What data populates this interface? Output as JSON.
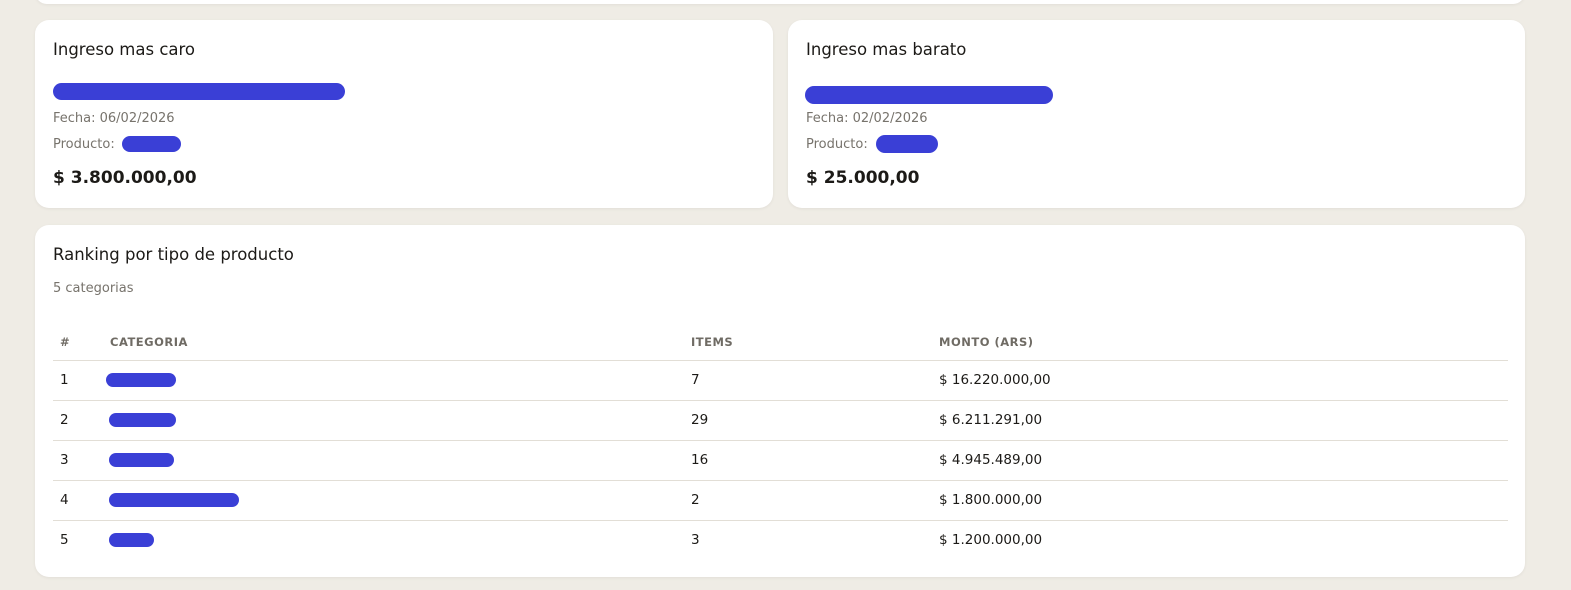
{
  "expensive": {
    "title": "Ingreso mas caro",
    "date": "Fecha: 06/02/2026",
    "product_label": "Producto:",
    "amount": "$ 3.800.000,00"
  },
  "cheapest": {
    "title": "Ingreso mas barato",
    "date": "Fecha: 02/02/2026",
    "product_label": "Producto:",
    "amount": "$ 25.000,00"
  },
  "ranking": {
    "title": "Ranking por tipo de producto",
    "subtitle": "5 categorias",
    "columns": [
      "#",
      "CATEGORIA",
      "ITEMS",
      "MONTO (ARS)"
    ],
    "rows": [
      {
        "rank": "1",
        "items": "7",
        "amount": "$ 16.220.000,00"
      },
      {
        "rank": "2",
        "items": "29",
        "amount": "$ 6.211.291,00"
      },
      {
        "rank": "3",
        "items": "16",
        "amount": "$ 4.945.489,00"
      },
      {
        "rank": "4",
        "items": "2",
        "amount": "$ 1.800.000,00"
      },
      {
        "rank": "5",
        "items": "3",
        "amount": "$ 1.200.000,00"
      }
    ]
  },
  "colors": {
    "redaction": "#3a3fd6",
    "background": "#efece5"
  }
}
